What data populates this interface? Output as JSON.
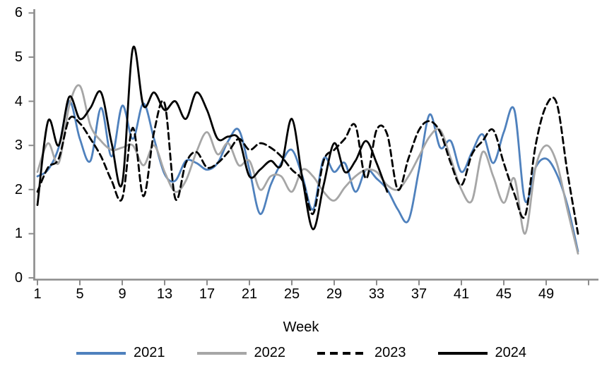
{
  "chart_data": {
    "type": "line",
    "title": "",
    "xlabel": "Week",
    "ylabel": "",
    "xlim": [
      1,
      52
    ],
    "ylim": [
      0,
      6
    ],
    "grid": false,
    "legend_position": "bottom",
    "axis_color": "#8C8C8C",
    "x_ticks": [
      1,
      5,
      9,
      13,
      17,
      21,
      25,
      29,
      33,
      37,
      41,
      45,
      49
    ],
    "y_ticks": [
      0,
      1,
      2,
      3,
      4,
      5,
      6
    ],
    "x_unit": "week",
    "series": [
      {
        "name": "2021",
        "color": "#4F81BD",
        "dash": "none",
        "start_week": 1,
        "values": [
          2.3,
          2.45,
          2.95,
          4.0,
          3.15,
          2.65,
          3.85,
          2.75,
          3.9,
          3.15,
          3.95,
          3.15,
          2.35,
          2.2,
          2.65,
          2.6,
          2.45,
          2.6,
          3.1,
          3.35,
          2.45,
          1.45,
          2.1,
          2.6,
          2.9,
          2.3,
          1.55,
          2.7,
          2.4,
          2.6,
          1.95,
          2.45,
          2.25,
          2.0,
          1.55,
          1.3,
          2.45,
          3.7,
          2.95,
          3.1,
          2.4,
          2.85,
          3.25,
          2.6,
          3.3,
          3.8,
          1.75,
          2.5,
          2.7,
          2.35,
          1.65,
          0.6
        ]
      },
      {
        "name": "2022",
        "color": "#A6A6A6",
        "dash": "none",
        "start_week": 1,
        "values": [
          2.4,
          3.05,
          2.6,
          3.9,
          4.35,
          3.45,
          3.1,
          2.9,
          2.95,
          3.0,
          2.55,
          3.0,
          2.4,
          1.95,
          2.2,
          2.85,
          3.3,
          2.8,
          3.05,
          2.55,
          2.65,
          2.0,
          2.3,
          2.3,
          1.95,
          2.45,
          2.3,
          1.95,
          1.75,
          2.05,
          2.3,
          2.45,
          2.4,
          2.1,
          2.0,
          2.3,
          2.75,
          3.2,
          3.35,
          2.7,
          2.0,
          1.75,
          2.85,
          2.3,
          1.7,
          2.25,
          1.0,
          2.5,
          3.0,
          2.6,
          1.55,
          0.55
        ]
      },
      {
        "name": "2023",
        "color": "#000000",
        "dash": "dashed",
        "start_week": 1,
        "values": [
          1.95,
          2.5,
          2.7,
          3.6,
          3.5,
          3.15,
          2.75,
          2.2,
          1.8,
          3.4,
          1.85,
          3.3,
          3.95,
          1.8,
          2.6,
          2.85,
          2.5,
          2.6,
          2.85,
          3.15,
          2.9,
          3.05,
          2.95,
          2.75,
          2.45,
          2.2,
          1.45,
          2.65,
          2.9,
          3.15,
          3.45,
          2.25,
          3.35,
          3.25,
          2.0,
          2.7,
          3.35,
          3.55,
          3.3,
          2.6,
          2.1,
          2.8,
          3.1,
          3.35,
          2.6,
          1.9,
          1.4,
          3.0,
          3.9,
          3.95,
          2.4,
          1.0
        ]
      },
      {
        "name": "2024",
        "color": "#000000",
        "dash": "none",
        "start_week": 1,
        "values": [
          1.65,
          3.55,
          3.0,
          4.1,
          3.6,
          3.85,
          4.2,
          3.05,
          2.15,
          5.2,
          3.9,
          4.2,
          3.8,
          4.0,
          3.6,
          4.2,
          3.8,
          3.15,
          3.2,
          3.15,
          2.3,
          2.45,
          2.65,
          2.55,
          3.6,
          2.25,
          1.1,
          2.1,
          3.05,
          2.4,
          2.65,
          3.1,
          2.6,
          1.95
        ]
      }
    ]
  },
  "legend": {
    "items": [
      "2021",
      "2022",
      "2023",
      "2024"
    ]
  }
}
